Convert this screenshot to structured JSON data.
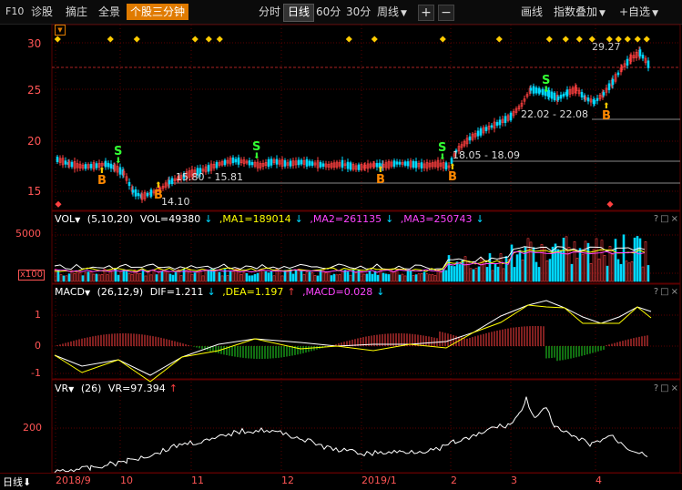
{
  "toolbar": {
    "f10": "F10",
    "items": [
      "诊股",
      "摘庄",
      "全景"
    ],
    "active_item": "个股三分钟",
    "periods": [
      "分时",
      "日线",
      "60分",
      "30分"
    ],
    "selected_period": "日线",
    "week_dropdown": "周线",
    "plus": "+",
    "minus": "−",
    "draw_line": "画线",
    "index_overlay": "指数叠加",
    "add_self": "+自选"
  },
  "price_pane": {
    "y_ticks": [
      "30",
      "25",
      "20",
      "15"
    ],
    "annotations": {
      "high": "29.27",
      "range1": "22.02 - 22.08",
      "range2": "18.05 - 18.09",
      "range3": "15.80 - 15.81",
      "low": "14.10"
    },
    "signals": {
      "buy": "B",
      "sell": "S"
    }
  },
  "vol_pane": {
    "name": "VOL",
    "params": "(5,10,20)",
    "vol": "VOL=49380",
    "ma1": ",MA1=189014",
    "ma2": ",MA2=261135",
    "ma3": ",MA3=250743",
    "y_ticks": [
      "5000",
      "x100"
    ],
    "controls": "?□×"
  },
  "macd_pane": {
    "name": "MACD",
    "params": "(26,12,9)",
    "dif": "DIF=1.211",
    "dea": ",DEA=1.197",
    "macd": ",MACD=0.028",
    "y_ticks": [
      "1",
      "0",
      "-1"
    ],
    "controls": "?□×"
  },
  "vr_pane": {
    "name": "VR",
    "params": "(26)",
    "vr": "VR=97.394",
    "y_ticks": [
      "200"
    ],
    "controls": "?□×"
  },
  "x_axis": {
    "period_label": "日线",
    "labels": [
      "2018/9",
      "10",
      "11",
      "12",
      "2019/1",
      "2",
      "3",
      "4"
    ]
  },
  "colors": {
    "up": "#ff4040",
    "down": "#00d8ff",
    "ma1": "#ffffff",
    "ma2": "#ffff00",
    "ma3": "#ff44ff",
    "grid": "#5a0000",
    "accent": "#e07b00"
  }
}
